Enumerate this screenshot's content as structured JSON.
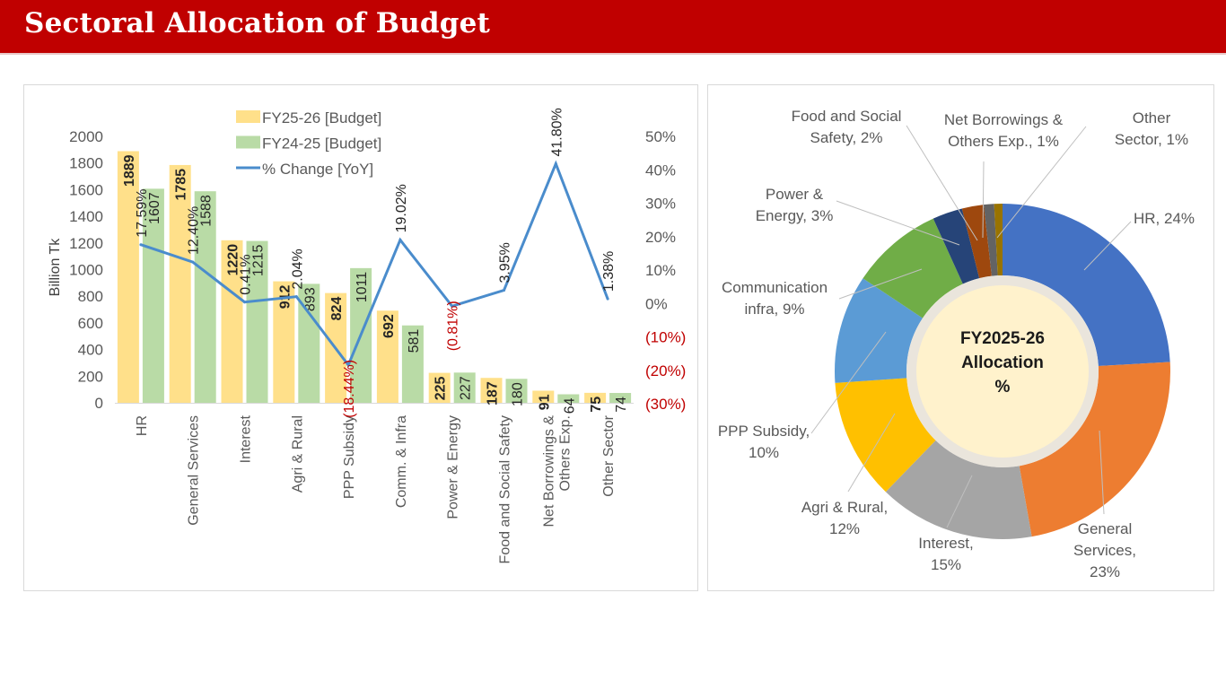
{
  "header": {
    "title": "Sectoral Allocation of Budget"
  },
  "colors": {
    "title_bar": "#c00000",
    "fy25_26": "#ffe08a",
    "fy24_25": "#b9dba6",
    "pct_line": "#4a8ccc",
    "negative_text": "#c00000",
    "axis_text": "#595959"
  },
  "chart_data": [
    {
      "type": "bar",
      "subtype": "combo-bar-line-dual-axis",
      "title": "",
      "xlabel": "",
      "ylabel": "Billion Tk",
      "y2label": "",
      "ylim": [
        0,
        2000
      ],
      "yticks": [
        "0",
        "200",
        "400",
        "600",
        "800",
        "1000",
        "1200",
        "1400",
        "1600",
        "1800",
        "2000"
      ],
      "y2lim": [
        -30,
        50
      ],
      "y2ticks": [
        "(30%)",
        "(20%)",
        "(10%)",
        "0%",
        "10%",
        "20%",
        "30%",
        "40%",
        "50%"
      ],
      "grid": false,
      "legend_position": "top-center",
      "categories": [
        "HR",
        "General Services",
        "Interest",
        "Agri & Rural",
        "PPP Subsidy",
        "Comm. & Infra",
        "Power & Energy",
        "Food and Social Safety",
        "Net Borrowings & Others Exp.",
        "Other Sector"
      ],
      "category_label_lines": [
        [
          "HR"
        ],
        [
          "General Services"
        ],
        [
          "Interest"
        ],
        [
          "Agri & Rural"
        ],
        [
          "PPP Subsidy"
        ],
        [
          "Comm. & Infra"
        ],
        [
          "Power & Energy"
        ],
        [
          "Food and Social Safety"
        ],
        [
          "Net Borrowings &",
          "Others Exp."
        ],
        [
          "Other Sector"
        ]
      ],
      "series": [
        {
          "name": "FY25-26 [Budget]",
          "kind": "bar",
          "axis": "left",
          "values": [
            1889,
            1785,
            1220,
            912,
            824,
            692,
            225,
            187,
            91,
            75
          ],
          "labels": [
            "1889",
            "1785",
            "1220",
            "912",
            "824",
            "692",
            "225",
            "187",
            "91",
            "75"
          ]
        },
        {
          "name": "FY24-25 [Budget]",
          "kind": "bar",
          "axis": "left",
          "values": [
            1607,
            1588,
            1215,
            893,
            1011,
            581,
            227,
            180,
            64,
            74
          ],
          "labels": [
            "1607",
            "1588",
            "1215",
            "893",
            "1011",
            "581",
            "227",
            "180",
            "64",
            "74"
          ]
        },
        {
          "name": "% Change [YoY]",
          "kind": "line",
          "axis": "right",
          "values": [
            17.59,
            12.4,
            0.41,
            2.04,
            -18.44,
            19.02,
            -0.81,
            3.95,
            41.8,
            1.38
          ],
          "labels": [
            "17.59%",
            "12.40%",
            "0.41%",
            "2.04%",
            "(18.44%)",
            "19.02%",
            "(0.81%)",
            "3.95%",
            "41.80%",
            "1.38%"
          ]
        }
      ]
    },
    {
      "type": "pie",
      "subtype": "doughnut",
      "title": "",
      "center_label": [
        "FY2025-26",
        "Allocation",
        "%"
      ],
      "slices": [
        {
          "name": "HR",
          "label_lines": [
            "HR, 24%"
          ],
          "value": 24,
          "color": "#4472c4"
        },
        {
          "name": "General Services",
          "label_lines": [
            "General",
            "Services,",
            "23%"
          ],
          "value": 23,
          "color": "#ed7d31"
        },
        {
          "name": "Interest",
          "label_lines": [
            "Interest,",
            "15%"
          ],
          "value": 15,
          "color": "#a5a5a5"
        },
        {
          "name": "Agri & Rural",
          "label_lines": [
            "Agri & Rural,",
            "12%"
          ],
          "value": 12,
          "color": "#ffc000"
        },
        {
          "name": "PPP Subsidy",
          "label_lines": [
            "PPP Subsidy,",
            "10%"
          ],
          "value": 10,
          "color": "#5b9bd5"
        },
        {
          "name": "Communication infra",
          "label_lines": [
            "Communication",
            "infra, 9%"
          ],
          "value": 9,
          "color": "#70ad47"
        },
        {
          "name": "Power & Energy",
          "label_lines": [
            "Power &",
            "Energy, 3%"
          ],
          "value": 3,
          "color": "#264478"
        },
        {
          "name": "Food and Social Safety",
          "label_lines": [
            "Food and Social",
            "Safety, 2%"
          ],
          "value": 2,
          "color": "#9e480e"
        },
        {
          "name": "Net Borrowings & Others Exp.",
          "label_lines": [
            "Net Borrowings &",
            "Others Exp., 1%"
          ],
          "value": 1,
          "color": "#636363"
        },
        {
          "name": "Other Sector",
          "label_lines": [
            "Other",
            "Sector, 1%"
          ],
          "value": 1,
          "color": "#997300"
        }
      ]
    }
  ]
}
